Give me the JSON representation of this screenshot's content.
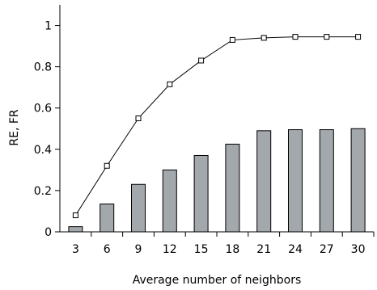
{
  "chart_data": {
    "type": "bar",
    "title": "",
    "xlabel": "Average number of neighbors",
    "ylabel": "RE, FR",
    "ylim": [
      0,
      1.1
    ],
    "yticks": [
      0,
      0.2,
      0.4,
      0.6,
      0.8,
      1
    ],
    "ytick_labels": [
      "0",
      "0.2",
      "0.4",
      "0.6",
      "0.8",
      "1"
    ],
    "categories": [
      "3",
      "6",
      "9",
      "12",
      "15",
      "18",
      "21",
      "24",
      "27",
      "30"
    ],
    "grid": false,
    "legend": "none",
    "series": [
      {
        "type": "bar",
        "values": [
          0.025,
          0.135,
          0.23,
          0.3,
          0.37,
          0.425,
          0.49,
          0.495,
          0.495,
          0.5
        ],
        "color": "#a3a8ad",
        "edge_color": "#000000"
      },
      {
        "type": "line",
        "marker": "open-square",
        "values": [
          0.08,
          0.32,
          0.55,
          0.715,
          0.83,
          0.93,
          0.94,
          0.945,
          0.945,
          0.945
        ],
        "color": "#000000"
      }
    ]
  }
}
